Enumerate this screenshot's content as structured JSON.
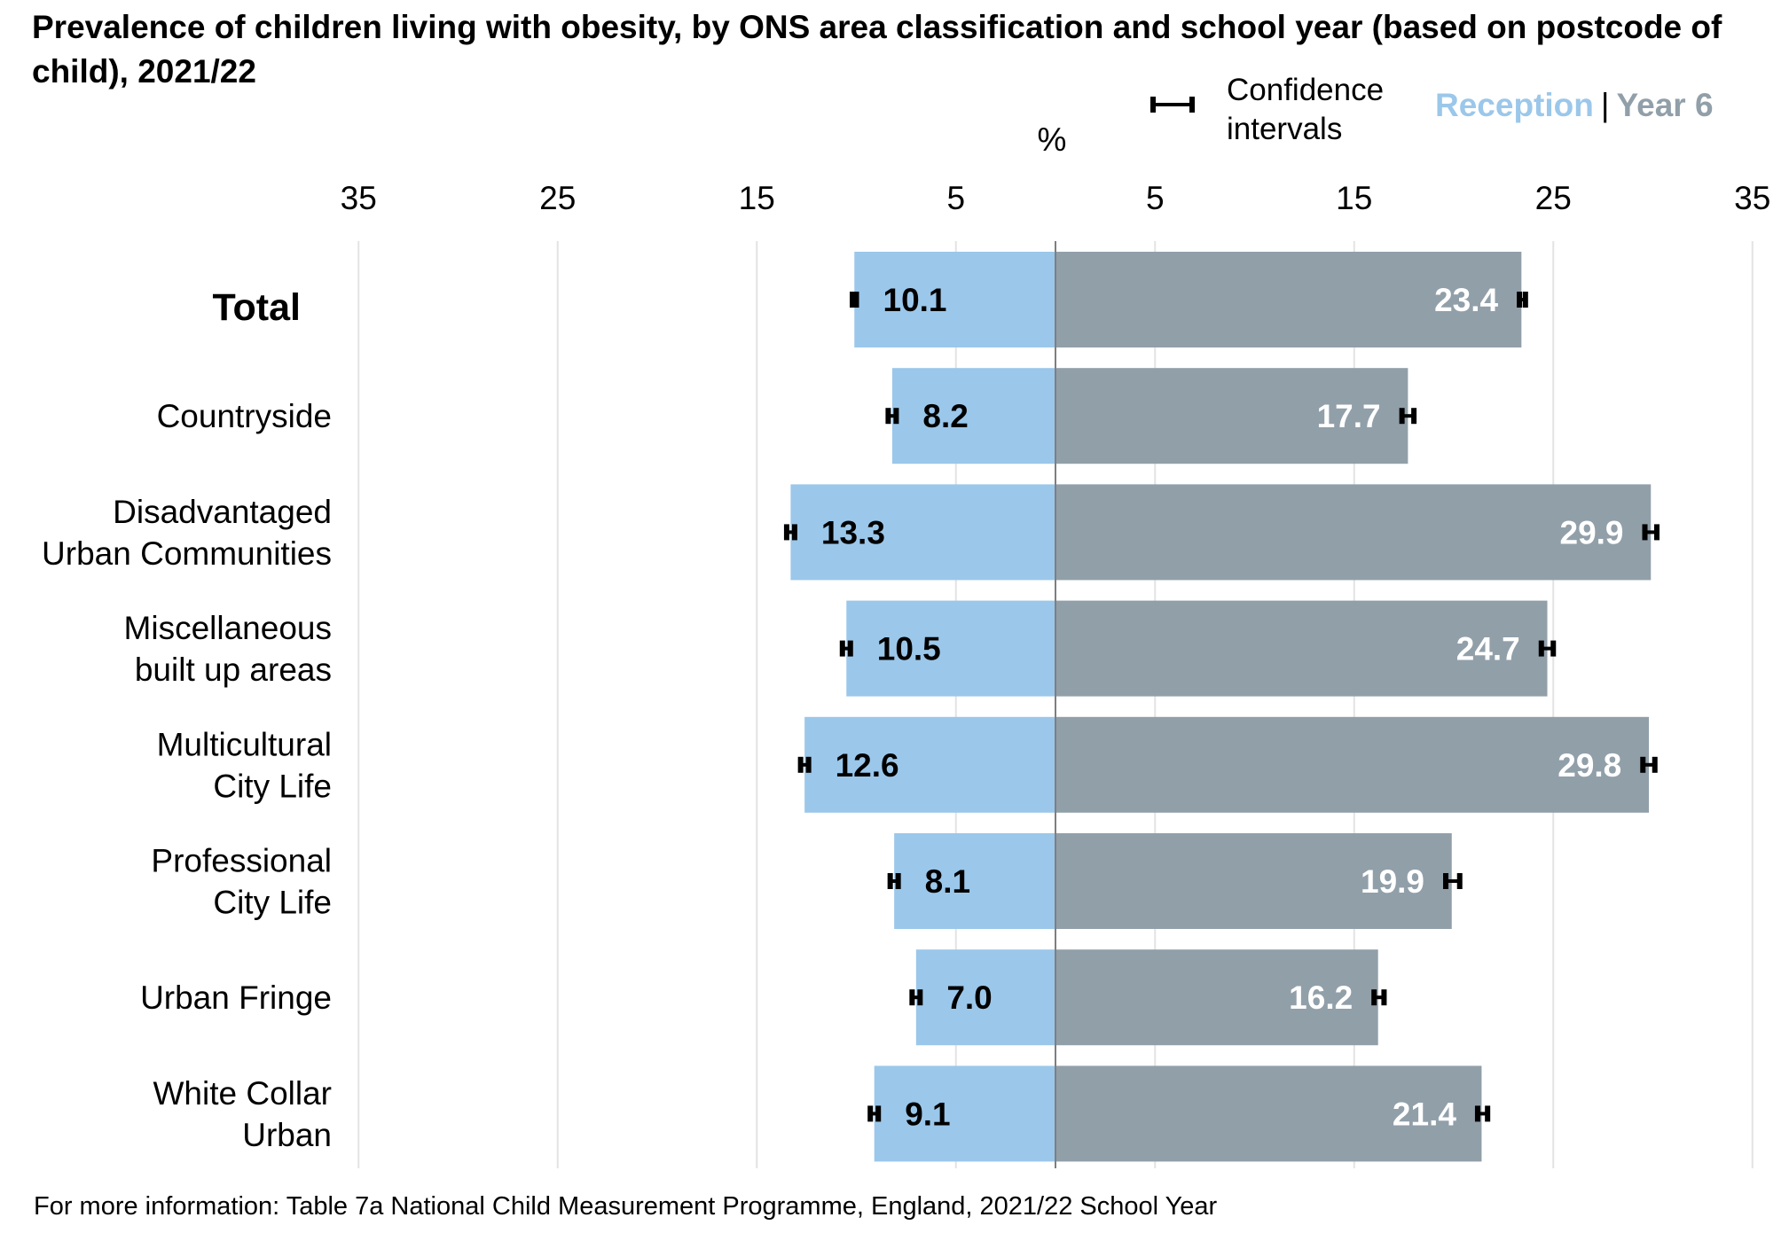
{
  "title": "Prevalence of children living with obesity, by ONS area classification and school year (based on postcode of child), 2021/22",
  "legend": {
    "ci_label": "Confidence intervals",
    "reception_label": "Reception",
    "separator": "|",
    "year6_label": "Year 6"
  },
  "axis_unit": "%",
  "footer": "For more information: Table 7a National Child Measurement Programme, England, 2021/22 School Year",
  "colors": {
    "reception": "#9bc7ea",
    "year6": "#919fa9",
    "reception_text": "#9bc7ea",
    "year6_text": "#919fa9",
    "gridline": "#e3e3e3",
    "center_axis": "#7f7f7f"
  },
  "chart_data": {
    "type": "bar",
    "orientation": "horizontal-diverging",
    "title": "Prevalence of children living with obesity, by ONS area classification and school year (based on postcode of child), 2021/22",
    "xlabel": "%",
    "ylabel": "",
    "xlim": [
      -35,
      35
    ],
    "tick_values": [
      -35,
      -25,
      -15,
      -5,
      5,
      15,
      25,
      35
    ],
    "tick_labels": [
      "35",
      "25",
      "15",
      "5",
      "5",
      "15",
      "25",
      "35"
    ],
    "grid": true,
    "legend_position": "top-right",
    "categories": [
      "Total",
      "Countryside",
      "Disadvantaged Urban Communities",
      "Miscellaneous built up areas",
      "Multicultural City Life",
      "Professional City Life",
      "Urban Fringe",
      "White Collar Urban"
    ],
    "category_lines": [
      [
        "Total"
      ],
      [
        "Countryside"
      ],
      [
        "Disadvantaged",
        "Urban Communities"
      ],
      [
        "Miscellaneous",
        "built up areas"
      ],
      [
        "Multicultural",
        "City Life"
      ],
      [
        "Professional",
        "City Life"
      ],
      [
        "Urban Fringe"
      ],
      [
        "White Collar",
        "Urban"
      ]
    ],
    "series": [
      {
        "name": "Reception",
        "side": "left",
        "values": [
          10.1,
          8.2,
          13.3,
          10.5,
          12.6,
          8.1,
          7.0,
          9.1
        ],
        "labels": [
          "10.1",
          "8.2",
          "13.3",
          "10.5",
          "12.6",
          "8.1",
          "7.0",
          "9.1"
        ],
        "ci": [
          [
            10.0,
            10.2
          ],
          [
            8.0,
            8.4
          ],
          [
            13.1,
            13.5
          ],
          [
            10.3,
            10.7
          ],
          [
            12.4,
            12.8
          ],
          [
            7.9,
            8.3
          ],
          [
            6.8,
            7.2
          ],
          [
            8.9,
            9.3
          ]
        ]
      },
      {
        "name": "Year 6",
        "side": "right",
        "values": [
          23.4,
          17.7,
          29.9,
          24.7,
          29.8,
          19.9,
          16.2,
          21.4
        ],
        "labels": [
          "23.4",
          "17.7",
          "29.9",
          "24.7",
          "29.8",
          "19.9",
          "16.2",
          "21.4"
        ],
        "ci": [
          [
            23.3,
            23.6
          ],
          [
            17.4,
            18.0
          ],
          [
            29.6,
            30.2
          ],
          [
            24.4,
            25.0
          ],
          [
            29.5,
            30.1
          ],
          [
            19.6,
            20.3
          ],
          [
            16.0,
            16.5
          ],
          [
            21.2,
            21.7
          ]
        ]
      }
    ]
  }
}
